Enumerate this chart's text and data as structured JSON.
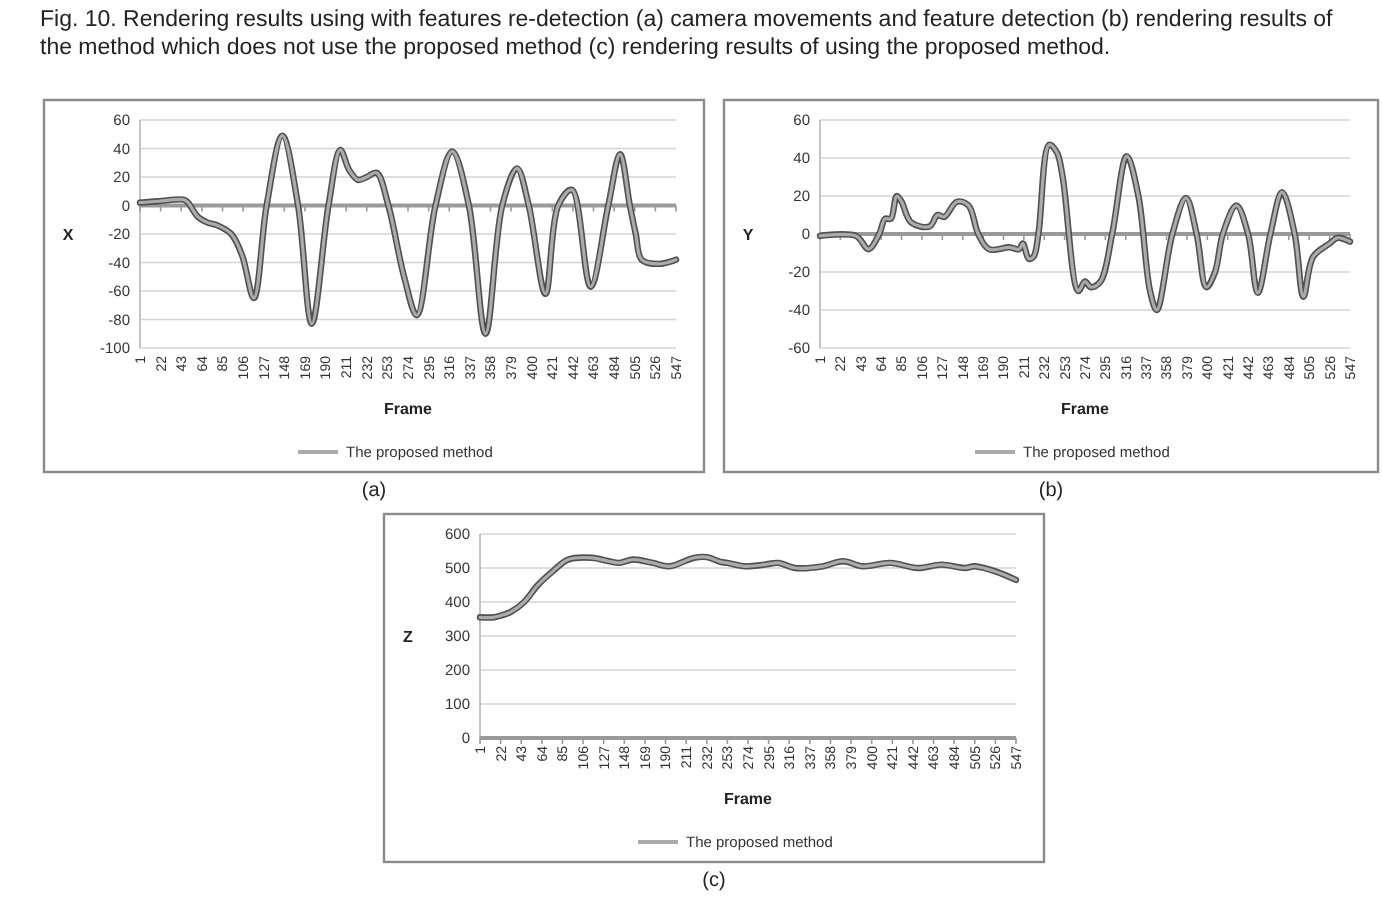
{
  "chart_data": [
    {
      "type": "line",
      "title": "Fig. 10. Rendering results using with features re-detection (a) camera movements and feature detection (b) rendering results of the method which does not use the proposed method (c) rendering results of using the proposed method.",
      "annotations": [
        "(a)"
      ],
      "xlabel": "Frame",
      "ylabel": "X",
      "grid": "y",
      "legend": "bottom",
      "line_style": "solid",
      "xlim": [
        1,
        547
      ],
      "xticks": [
        1,
        22,
        43,
        64,
        85,
        106,
        127,
        148,
        169,
        190,
        211,
        232,
        253,
        274,
        295,
        316,
        337,
        358,
        379,
        400,
        421,
        442,
        463,
        484,
        505,
        526,
        547
      ],
      "ylim": [
        -100,
        60
      ],
      "yticks": [
        -100,
        -80,
        -60,
        -40,
        -20,
        0,
        20,
        40,
        60
      ],
      "x": [
        1,
        20,
        46,
        50,
        60,
        70,
        80,
        94,
        105,
        117,
        130,
        146,
        162,
        176,
        193,
        205,
        214,
        223,
        232,
        242,
        254,
        270,
        283,
        302,
        319,
        336,
        353,
        370,
        385,
        397,
        414,
        427,
        441,
        460,
        478,
        490,
        500,
        506,
        512,
        529,
        547
      ],
      "series": [
        {
          "color": "#505050",
          "values": [
            2,
            3,
            4,
            2,
            -8,
            -12,
            -14,
            -20,
            -35,
            -65,
            0,
            49,
            0,
            -83,
            0,
            39,
            25,
            18,
            20,
            23,
            0,
            -50,
            -77,
            0,
            38,
            0,
            -90,
            0,
            26,
            0,
            -62,
            0,
            11,
            -57,
            0,
            36,
            0,
            -20,
            -38,
            -41,
            -38
          ]
        },
        {
          "name": "The proposed method",
          "color": "#ababab",
          "values": [
            2,
            3,
            4,
            2,
            -8,
            -12,
            -14,
            -20,
            -35,
            -65,
            0,
            49,
            0,
            -83,
            0,
            39,
            25,
            18,
            20,
            23,
            0,
            -50,
            -77,
            0,
            38,
            0,
            -90,
            0,
            26,
            0,
            -62,
            0,
            11,
            -57,
            0,
            36,
            0,
            -20,
            -38,
            -41,
            -38
          ]
        }
      ]
    },
    {
      "type": "line",
      "annotations": [
        "(b)"
      ],
      "xlabel": "Frame",
      "ylabel": "Y",
      "grid": "y",
      "legend": "bottom",
      "line_style": "solid",
      "xlim": [
        1,
        547
      ],
      "xticks": [
        1,
        22,
        43,
        64,
        85,
        106,
        127,
        148,
        169,
        190,
        211,
        232,
        253,
        274,
        295,
        316,
        337,
        358,
        379,
        400,
        421,
        442,
        463,
        484,
        505,
        526,
        547
      ],
      "ylim": [
        -60,
        60
      ],
      "yticks": [
        -60,
        -40,
        -20,
        0,
        20,
        40,
        60
      ],
      "x": [
        1,
        38,
        51,
        62,
        68,
        74,
        80,
        85,
        95,
        114,
        122,
        129,
        142,
        154,
        164,
        175,
        196,
        206,
        210,
        216,
        221,
        226,
        237,
        245,
        251,
        267,
        274,
        280,
        290,
        302,
        317,
        329,
        341,
        348,
        364,
        378,
        389,
        399,
        408,
        416,
        430,
        442,
        452,
        465,
        477,
        490,
        499,
        509,
        526,
        534,
        547
      ],
      "series": [
        {
          "color": "#505050",
          "values": [
            -1,
            -1,
            -8,
            0,
            8,
            8,
            20,
            17,
            6,
            4,
            10,
            9,
            17,
            15,
            0,
            -8,
            -7,
            -8,
            -5,
            -13,
            -12,
            0,
            47,
            43,
            30,
            -30,
            -25,
            -28,
            -25,
            0,
            41,
            20,
            -30,
            -40,
            0,
            19,
            0,
            -28,
            -20,
            0,
            15,
            0,
            -31,
            0,
            22,
            0,
            -33,
            -12,
            -5,
            -2,
            -4
          ]
        },
        {
          "name": "The proposed method",
          "color": "#ababab",
          "values": [
            -1,
            -1,
            -8,
            0,
            8,
            8,
            20,
            17,
            6,
            4,
            10,
            9,
            17,
            15,
            0,
            -8,
            -7,
            -8,
            -5,
            -13,
            -12,
            0,
            47,
            43,
            30,
            -30,
            -25,
            -28,
            -25,
            0,
            41,
            20,
            -30,
            -40,
            0,
            19,
            0,
            -28,
            -20,
            0,
            15,
            0,
            -31,
            0,
            22,
            0,
            -33,
            -12,
            -5,
            -2,
            -4
          ]
        }
      ]
    },
    {
      "type": "line",
      "annotations": [
        "(c)"
      ],
      "xlabel": "Frame",
      "ylabel": "Z",
      "grid": "y",
      "legend": "bottom",
      "line_style": "solid",
      "xlim": [
        1,
        547
      ],
      "xticks": [
        1,
        22,
        43,
        64,
        85,
        106,
        127,
        148,
        169,
        190,
        211,
        232,
        253,
        274,
        295,
        316,
        337,
        358,
        379,
        400,
        421,
        442,
        463,
        484,
        505,
        526,
        547
      ],
      "ylim": [
        0,
        600
      ],
      "yticks": [
        0,
        100,
        200,
        300,
        400,
        500,
        600
      ],
      "x": [
        1,
        15,
        22,
        32,
        46,
        60,
        75,
        91,
        115,
        132,
        143,
        157,
        177,
        194,
        219,
        232,
        246,
        253,
        271,
        291,
        305,
        322,
        350,
        371,
        391,
        419,
        447,
        471,
        495,
        505,
        526,
        547
      ],
      "series": [
        {
          "color": "#505050",
          "values": [
            355,
            355,
            360,
            370,
            400,
            450,
            490,
            525,
            530,
            520,
            515,
            525,
            515,
            505,
            530,
            532,
            518,
            515,
            505,
            510,
            515,
            500,
            505,
            520,
            505,
            515,
            500,
            510,
            500,
            505,
            490,
            465
          ]
        },
        {
          "name": "The proposed method",
          "color": "#ababab",
          "values": [
            355,
            355,
            360,
            370,
            400,
            450,
            490,
            525,
            530,
            520,
            515,
            525,
            515,
            505,
            530,
            532,
            518,
            515,
            505,
            510,
            515,
            500,
            505,
            520,
            505,
            515,
            500,
            510,
            500,
            505,
            490,
            465
          ]
        }
      ]
    }
  ]
}
